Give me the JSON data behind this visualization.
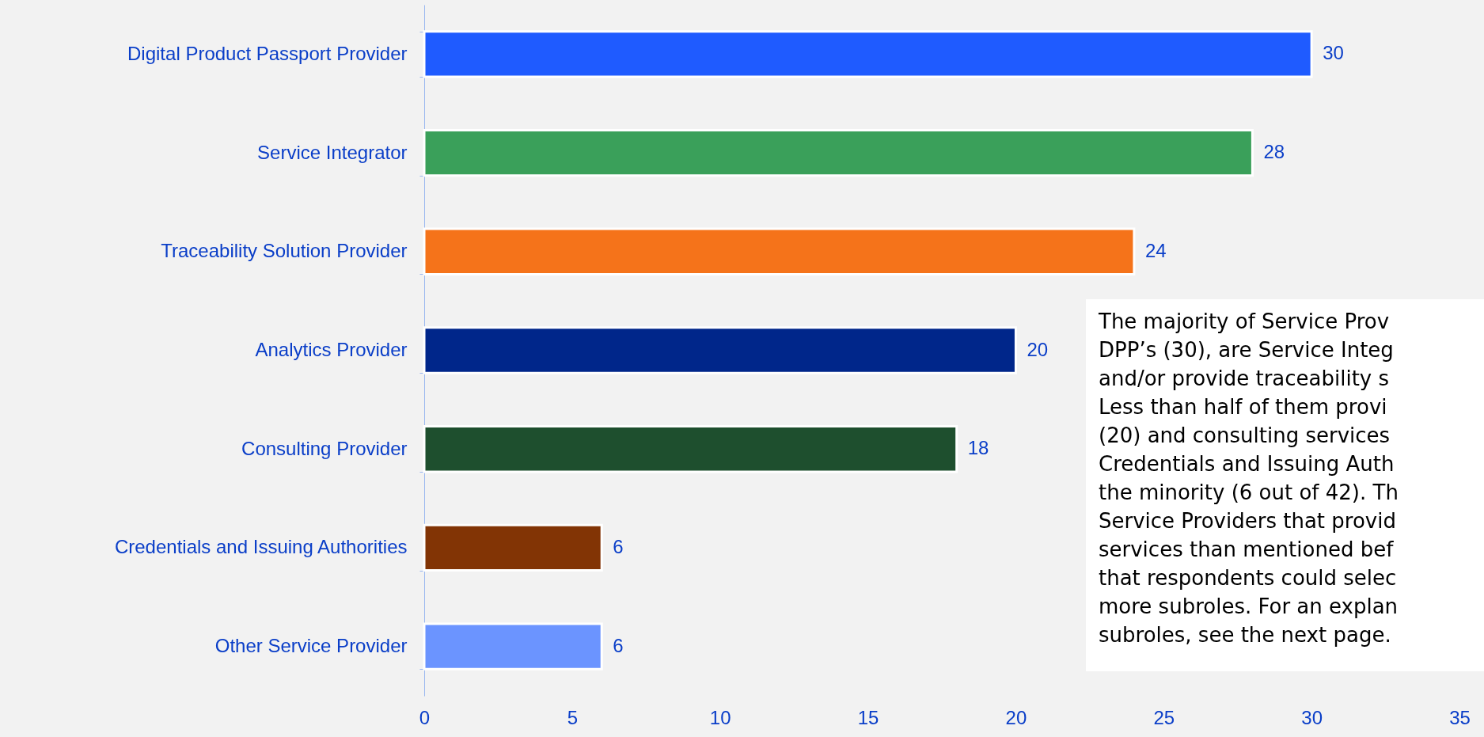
{
  "chart_data": {
    "type": "bar",
    "orientation": "horizontal",
    "categories": [
      "Digital Product Passport Provider",
      "Service Integrator",
      "Traceability Solution Provider",
      "Analytics Provider",
      "Consulting Provider",
      "Credentials and Issuing Authorities",
      "Other Service Provider"
    ],
    "values": [
      30,
      28,
      24,
      20,
      18,
      6,
      6
    ],
    "colors": [
      "#1f5bff",
      "#3aa05a",
      "#f5731a",
      "#00268a",
      "#1e4f2e",
      "#823405",
      "#6b94ff"
    ],
    "xlim": [
      0,
      35
    ],
    "xticks": [
      0,
      5,
      10,
      15,
      20,
      25,
      30,
      35
    ],
    "grid": false,
    "data_labels": true,
    "annotations": [
      "The majority of Service Prov\nDPP’s (30), are Service Integ\nand/or provide traceability s\nLess than half of them provi\n(20) and consulting services\nCredentials and Issuing Auth\nthe minority (6 out of 42). Th\nService Providers that provid\nservices than mentioned bef\nthat respondents could selec\nmore subroles. For an explan\nsubroles, see the next page."
    ]
  }
}
